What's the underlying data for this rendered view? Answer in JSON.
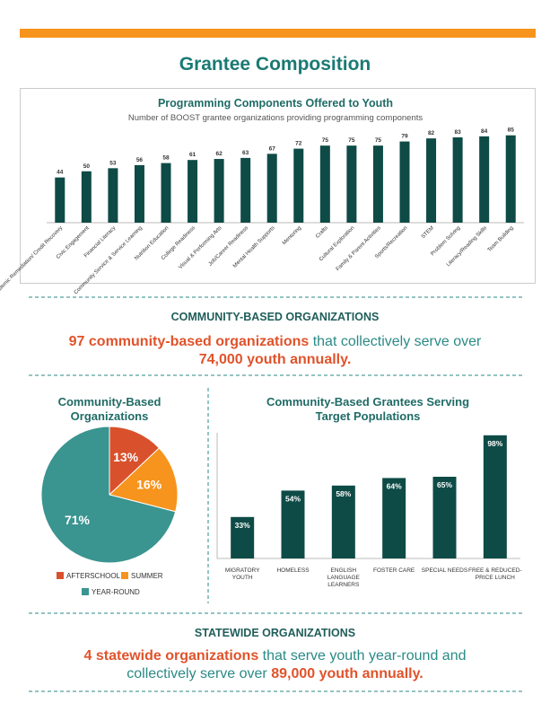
{
  "header": {
    "title": "Grantee Composition"
  },
  "sections": [
    {
      "heading": "COMMUNITY-BASED ORGANIZATIONS",
      "parts": [
        "97 community-based organizations",
        " that collectively serve over",
        "74,000 youth annually."
      ]
    },
    {
      "heading": "STATEWIDE ORGANIZATIONS",
      "parts": [
        "4 statewide organizations",
        " that serve youth year-round and",
        "collectively serve over ",
        "89,000 youth annually."
      ]
    }
  ],
  "chart_data": [
    {
      "type": "bar",
      "title": "Programming Components Offered to Youth",
      "subtitle": "Number of BOOST grantee organizations providing programming components",
      "categories": [
        "Academic Remediation/ Credit Recovery",
        "Civic Engagement",
        "Financial Literacy",
        "Community Service & Service Learning",
        "Nutrition Education",
        "College Readiness",
        "Visual & Performing Arts",
        "Job/Career Readiness",
        "Mental Health Supports",
        "Mentoring",
        "Crafts",
        "Cultural Exploration",
        "Family & Parent Activities",
        "Sports/Recreation",
        "STEM",
        "Problem Solving",
        "Literacy/Reading Skills",
        "Team Building"
      ],
      "values": [
        44,
        50,
        53,
        56,
        58,
        61,
        62,
        63,
        67,
        72,
        75,
        75,
        75,
        79,
        82,
        83,
        84,
        85
      ],
      "color": "#0e4b46",
      "ylim": [
        0,
        90
      ]
    },
    {
      "type": "pie",
      "title": "Community-Based Organizations",
      "categories": [
        "AFTERSCHOOL",
        "SUMMER",
        "YEAR-ROUND"
      ],
      "values": [
        13,
        16,
        71
      ],
      "value_labels": [
        "13%",
        "16%",
        "71%"
      ],
      "colors": [
        "#d9512c",
        "#f7941d",
        "#3a9490"
      ]
    },
    {
      "type": "bar",
      "title": "Community-Based Grantees Serving Target Populations",
      "categories": [
        "MIGRATORY YOUTH",
        "HOMELESS",
        "ENGLISH LANGUAGE LEARNERS",
        "FOSTER CARE",
        "SPECIAL NEEDS",
        "FREE & REDUCED-PRICE LUNCH"
      ],
      "values": [
        33,
        54,
        58,
        64,
        65,
        98
      ],
      "value_labels": [
        "33%",
        "54%",
        "58%",
        "64%",
        "65%",
        "98%"
      ],
      "color": "#0e4b46",
      "ylim": [
        0,
        100
      ]
    }
  ]
}
